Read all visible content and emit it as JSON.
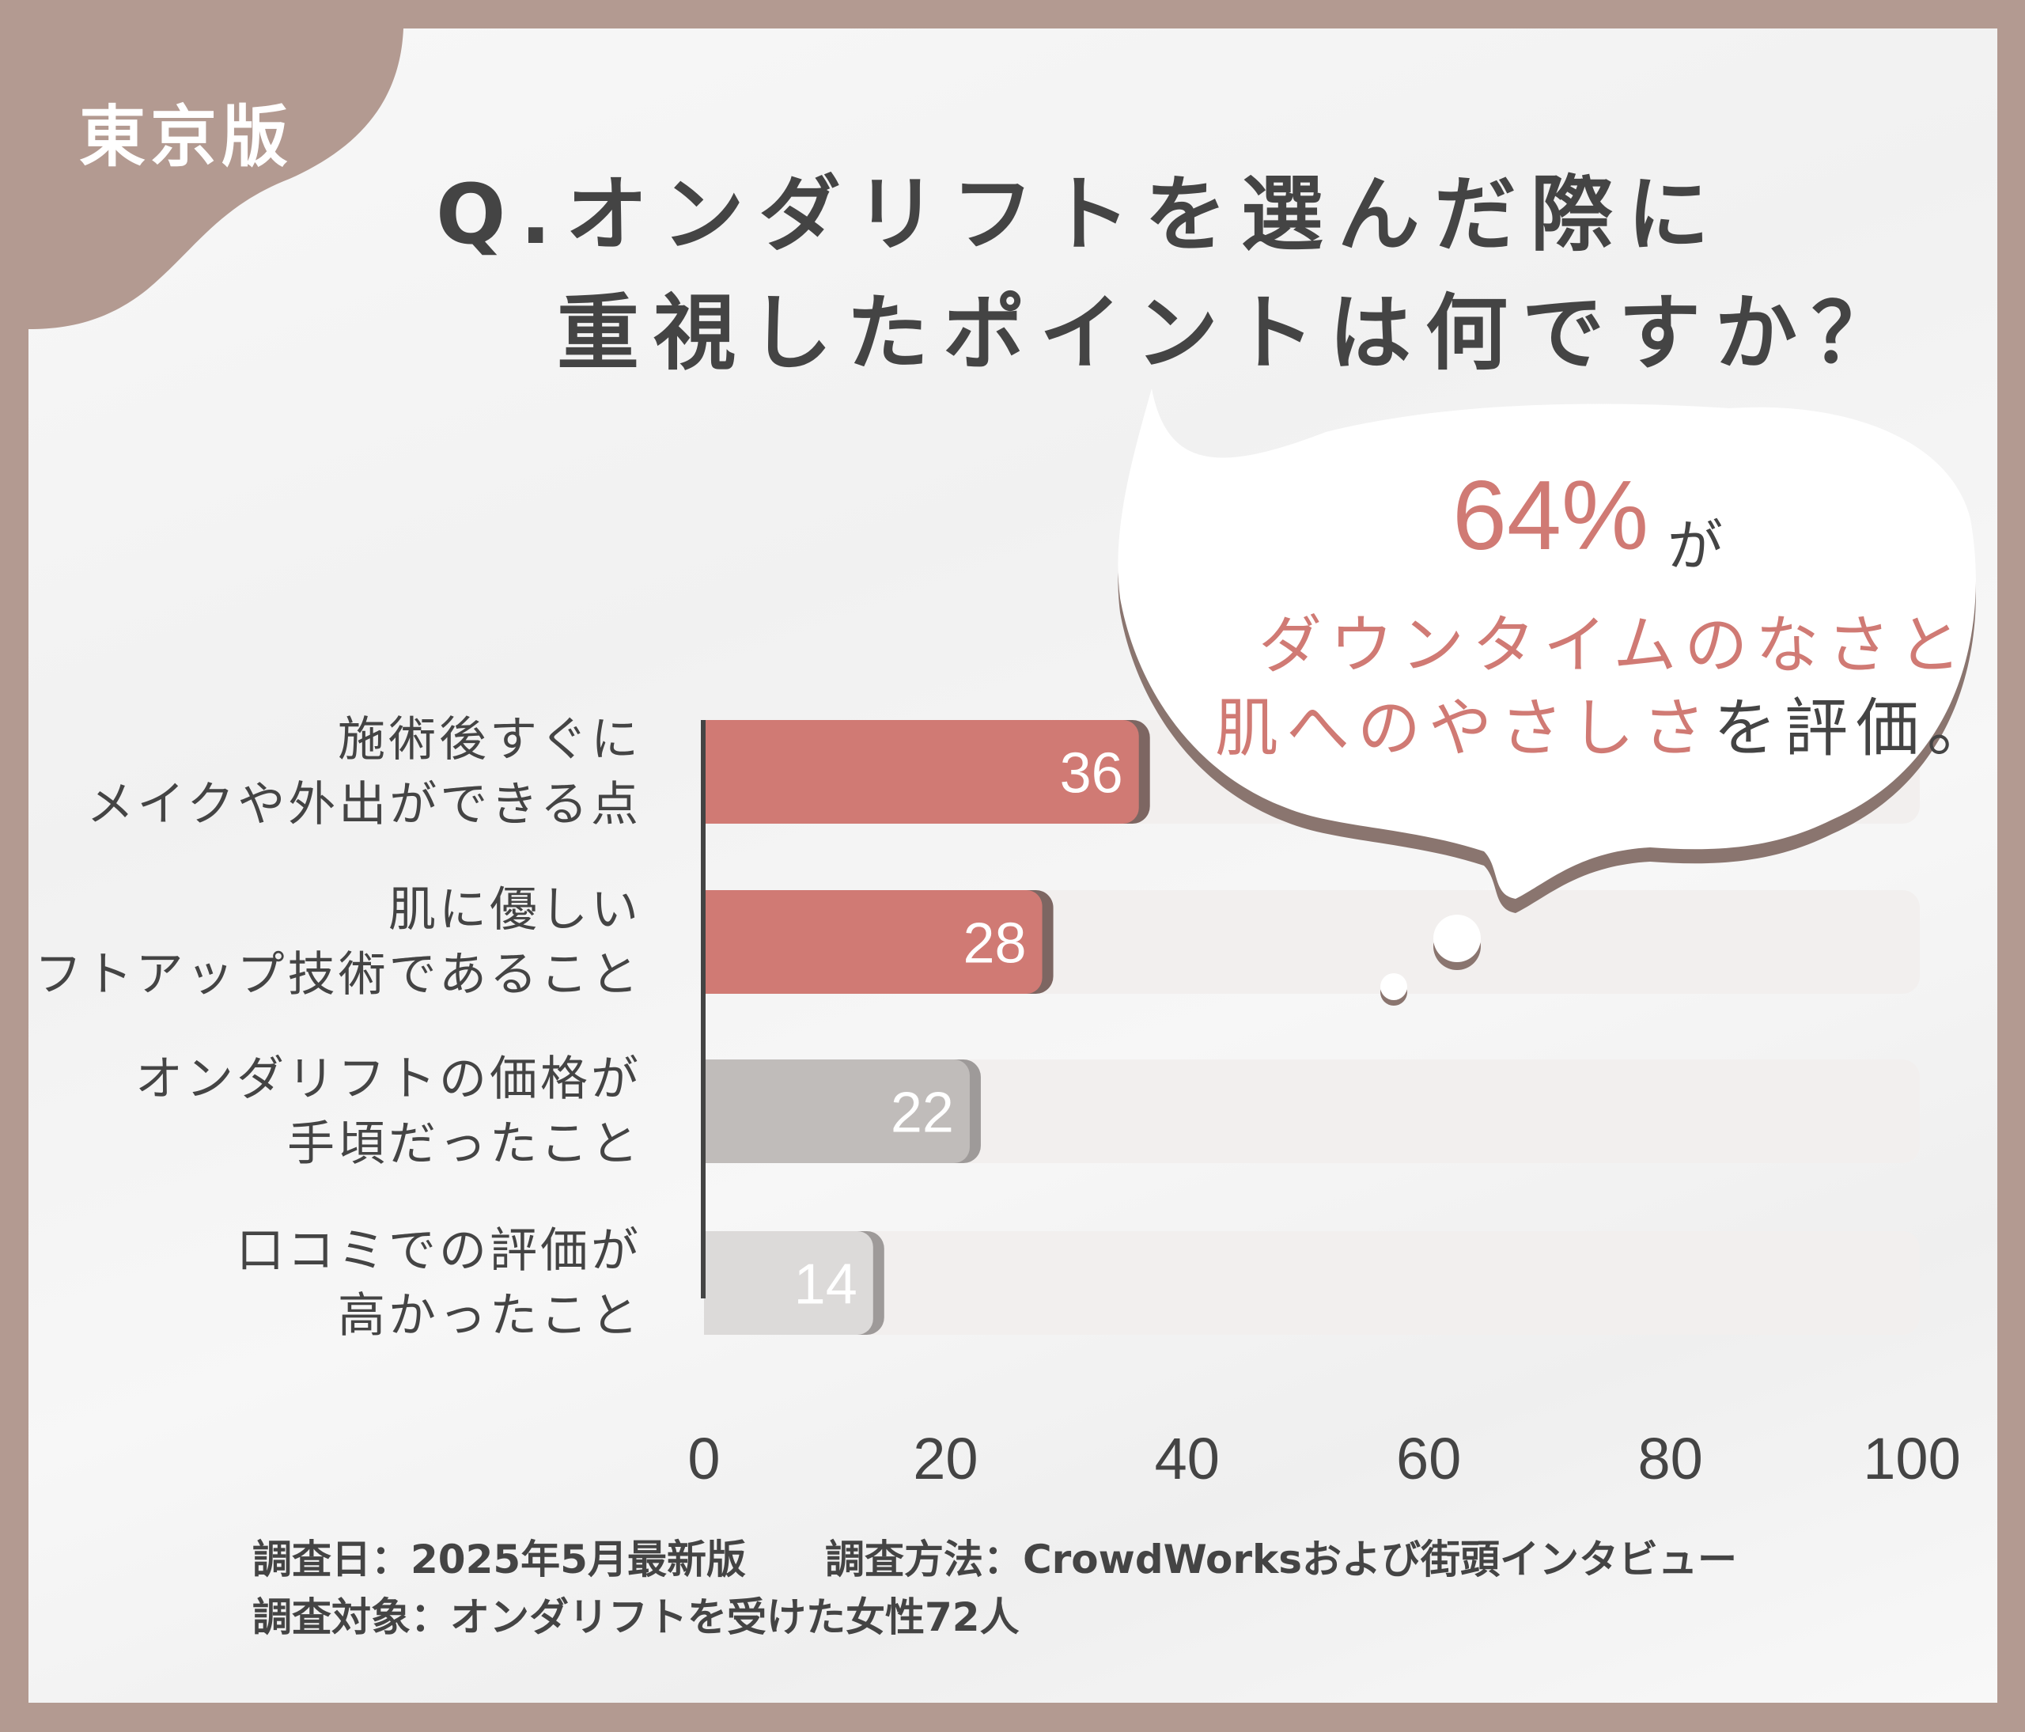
{
  "badge": "東京版",
  "title": {
    "line1": "Q.オンダリフトを選んだ際に",
    "line2": "重視したポイントは何ですか？"
  },
  "callout": {
    "percent": "64%",
    "suffix": "が",
    "line1": "ダウンタイムのなさと",
    "line2_highlight": "肌へのやさしさ",
    "line2_rest": "を評価。"
  },
  "colors": {
    "frame": "#b39a91",
    "accent": "#d07a74",
    "gray": "#c0bcba",
    "light_gray": "#dcdad9",
    "track": "#f2efee",
    "text": "#444444"
  },
  "chart_data": {
    "type": "bar",
    "orientation": "horizontal",
    "categories": [
      [
        "施術後すぐに",
        "メイクや外出ができる点"
      ],
      [
        "肌に優しい",
        "リフトアップ技術であること"
      ],
      [
        "オンダリフトの価格が",
        "手頃だったこと"
      ],
      [
        "口コミでの評価が",
        "高かったこと"
      ]
    ],
    "values": [
      36,
      28,
      22,
      14
    ],
    "value_labels": [
      "36",
      "28",
      "22",
      "14"
    ],
    "bar_colors": [
      "#d07a74",
      "#d07a74",
      "#c0bcba",
      "#dcdad9"
    ],
    "xlim": [
      0,
      100
    ],
    "xticks": [
      "0",
      "20",
      "40",
      "60",
      "80",
      "100"
    ],
    "grid": false
  },
  "footer": {
    "line1": "調査日：2025年5月最新版　　調査方法：CrowdWorksおよび街頭インタビュー",
    "line2": "調査対象：オンダリフトを受けた女性72人"
  }
}
